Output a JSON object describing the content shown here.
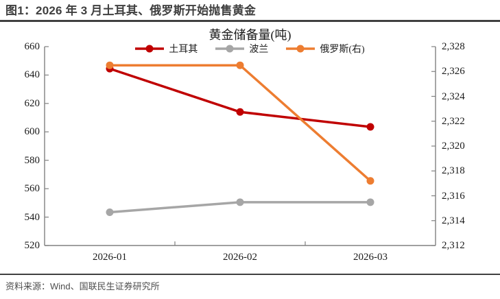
{
  "header": {
    "title": "图1：2026 年 3 月土耳其、俄罗斯开始抛售黄金"
  },
  "footer": {
    "source": "资料来源：Wind、国联民生证券研究所"
  },
  "colors": {
    "title_text": "#3f3f3f",
    "rule": "#404040",
    "axis": "#808080",
    "tick_text": "#1a1a1a",
    "turkey": "#c00000",
    "poland": "#a6a6a6",
    "russia": "#ed7d31"
  },
  "chart_data": {
    "type": "line",
    "title": "黄金储备量(吨)",
    "categories": [
      "2026-01",
      "2026-02",
      "2026-03"
    ],
    "series": [
      {
        "name": "土耳其",
        "axis": "left",
        "color": "#c00000",
        "values": [
          644.5,
          614.0,
          603.5
        ]
      },
      {
        "name": "波兰",
        "axis": "left",
        "color": "#a6a6a6",
        "values": [
          543.4,
          550.5,
          550.5
        ]
      },
      {
        "name": "俄罗斯(右)",
        "axis": "right",
        "color": "#ed7d31",
        "values": [
          2326.5,
          2326.5,
          2317.2
        ]
      }
    ],
    "left_axis": {
      "min": 520,
      "max": 660,
      "ticks": [
        660,
        640,
        620,
        600,
        580,
        560,
        540,
        520
      ]
    },
    "right_axis": {
      "min": 2312,
      "max": 2328,
      "ticks": [
        2328,
        2326,
        2324,
        2322,
        2320,
        2318,
        2316,
        2314,
        2312
      ]
    },
    "legend_position": "top",
    "grid": false
  }
}
